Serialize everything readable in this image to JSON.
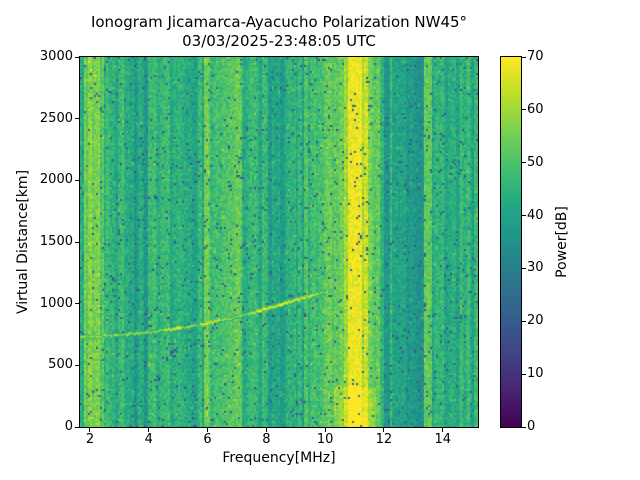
{
  "title": {
    "line1": "Ionogram Jicamarca-Ayacucho Polarization NW45°",
    "line2": "03/03/2025-23:48:05 UTC"
  },
  "chart_data": {
    "type": "heatmap",
    "title": "Ionogram Jicamarca-Ayacucho Polarization NW45°",
    "subtitle": "03/03/2025-23:48:05 UTC",
    "xlabel": "Frequency[MHz]",
    "ylabel": "Virtual Distance[km]",
    "colorbar_label": "Power[dB]",
    "xlim": [
      1.66,
      15.2
    ],
    "ylim": [
      0,
      3000
    ],
    "clim": [
      0,
      70
    ],
    "xticks": [
      2,
      4,
      6,
      8,
      10,
      12,
      14
    ],
    "yticks": [
      0,
      500,
      1000,
      1500,
      2000,
      2500,
      3000
    ],
    "cticks": [
      0,
      10,
      20,
      30,
      40,
      50,
      60,
      70
    ],
    "grid": false,
    "legend": "colorbar-right",
    "colormap": "viridis",
    "colormap_stops": [
      [
        0.0,
        "#440154"
      ],
      [
        0.1,
        "#482475"
      ],
      [
        0.2,
        "#414487"
      ],
      [
        0.3,
        "#355f8d"
      ],
      [
        0.4,
        "#2a788e"
      ],
      [
        0.5,
        "#21918c"
      ],
      [
        0.6,
        "#22a884"
      ],
      [
        0.7,
        "#44bf70"
      ],
      [
        0.8,
        "#7ad151"
      ],
      [
        0.9,
        "#bddf26"
      ],
      [
        1.0,
        "#fde725"
      ]
    ],
    "background_noise": {
      "seed": 42,
      "mean_power_db": 44,
      "bright_stripe_power_db": 52,
      "dark_stripe_power_db": 36,
      "pixel_jitter_db": 9,
      "dark_speckle_power_db": 22
    },
    "interference_bands": [
      {
        "f0": 1.78,
        "f1": 2.33,
        "power": 55,
        "jitter": 7
      },
      {
        "f0": 2.34,
        "f1": 2.48,
        "power": 51,
        "jitter": 5
      },
      {
        "f0": 9.55,
        "f1": 10.05,
        "power": 49,
        "jitter": 7
      },
      {
        "f0": 10.05,
        "f1": 10.62,
        "power": 53,
        "jitter": 6
      },
      {
        "f0": 10.62,
        "f1": 10.76,
        "power": 59,
        "jitter": 4
      },
      {
        "f0": 10.76,
        "f1": 11.24,
        "power": 69,
        "jitter": 2
      },
      {
        "f0": 11.24,
        "f1": 11.33,
        "power": 61,
        "jitter": 3
      },
      {
        "f0": 11.33,
        "f1": 11.47,
        "power": 66,
        "jitter": 3
      },
      {
        "f0": 11.47,
        "f1": 11.65,
        "power": 55,
        "jitter": 5
      }
    ],
    "bottom_boost": {
      "f0": 10.3,
      "f1": 11.7,
      "km_below": 330,
      "dp": 5
    },
    "echo_trace": {
      "points_f_mhz_vs_km": [
        [
          1.66,
          728
        ],
        [
          2.0,
          732
        ],
        [
          2.5,
          738
        ],
        [
          3.0,
          746
        ],
        [
          3.5,
          756
        ],
        [
          4.0,
          768
        ],
        [
          4.5,
          783
        ],
        [
          5.0,
          800
        ],
        [
          5.5,
          820
        ],
        [
          6.0,
          842
        ],
        [
          6.5,
          867
        ],
        [
          7.0,
          894
        ],
        [
          7.5,
          924
        ],
        [
          8.0,
          957
        ],
        [
          8.5,
          992
        ],
        [
          9.0,
          1029
        ],
        [
          9.5,
          1066
        ],
        [
          10.0,
          1096
        ],
        [
          10.15,
          1104
        ]
      ],
      "power_db": 56,
      "bright_segments_f_mhz": [
        [
          4.5,
          5.15
        ],
        [
          5.75,
          6.45
        ],
        [
          7.5,
          9.6
        ]
      ],
      "bright_power_db": 65
    }
  }
}
